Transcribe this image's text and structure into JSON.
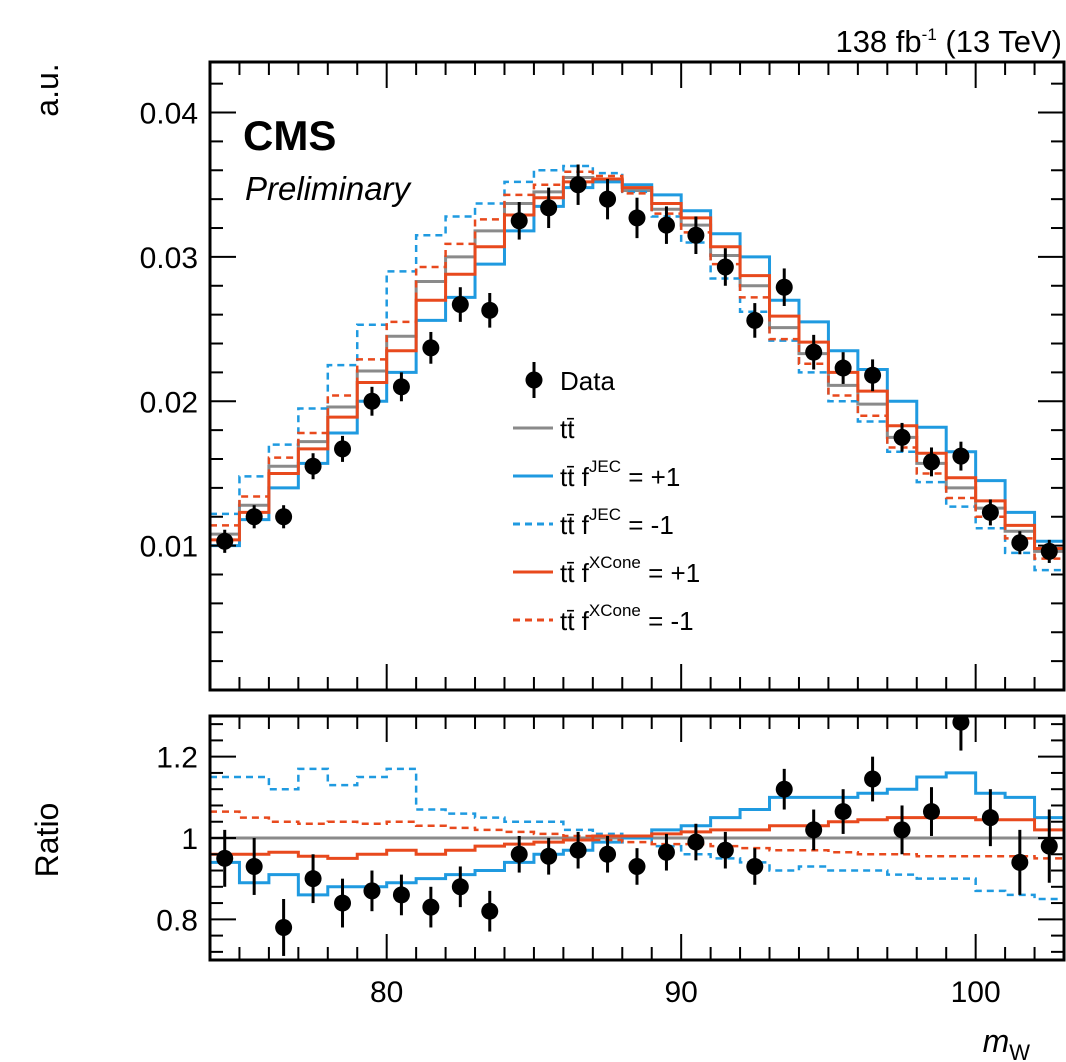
{
  "header": {
    "lumi_number": "138 fb",
    "lumi_exponent": "-1",
    "lumi_energy": " (13 TeV)",
    "experiment": "CMS",
    "status": "Preliminary"
  },
  "legend": {
    "data_label": "Data",
    "tt": "tt̄",
    "f": " f",
    "sup_jec": "JEC",
    "sup_xcone": "XCone",
    "plus": " = +1",
    "minus": " = -1"
  },
  "chart_data": [
    {
      "type": "line",
      "panel": "main",
      "ylabel": "a.u.",
      "xlabel": "m",
      "xlabel_subscript": "W",
      "xlim": [
        74,
        103
      ],
      "ylim": [
        0,
        0.0435
      ],
      "yticks": [
        "0.01",
        "0.02",
        "0.03",
        "0.04"
      ],
      "xticks": [
        "80",
        "90",
        "100"
      ],
      "x_bin_edges": [
        74,
        75,
        76,
        77,
        78,
        79,
        80,
        81,
        82,
        83,
        84,
        85,
        86,
        87,
        88,
        89,
        90,
        91,
        92,
        93,
        94,
        95,
        96,
        97,
        98,
        99,
        100,
        101,
        102,
        103
      ],
      "series": [
        {
          "name": "Data",
          "style": "points",
          "color": "#000000",
          "values": [
            0.0103,
            0.012,
            0.012,
            0.0155,
            0.0167,
            0.02,
            0.021,
            0.0237,
            0.0267,
            0.0263,
            0.0325,
            0.0334,
            0.035,
            0.034,
            0.0327,
            0.0322,
            0.0315,
            0.0293,
            0.0256,
            0.0279,
            0.0234,
            0.0223,
            0.0218,
            0.0175,
            0.0158,
            0.0162,
            0.0123,
            0.0102,
            0.0096
          ],
          "errors": [
            0.0008,
            0.0008,
            0.0008,
            0.0009,
            0.0009,
            0.001,
            0.001,
            0.0011,
            0.0012,
            0.0012,
            0.0013,
            0.0014,
            0.0014,
            0.0014,
            0.0014,
            0.0013,
            0.0013,
            0.0013,
            0.0012,
            0.0013,
            0.0012,
            0.0011,
            0.0011,
            0.001,
            0.001,
            0.001,
            0.0009,
            0.0008,
            0.0008
          ]
        },
        {
          "name": "tt̄",
          "style": "solid",
          "color": "#8a8a8a",
          "values": [
            0.0108,
            0.0128,
            0.0155,
            0.0172,
            0.0196,
            0.0221,
            0.0245,
            0.0283,
            0.03,
            0.0318,
            0.0337,
            0.0345,
            0.0355,
            0.0353,
            0.0346,
            0.0333,
            0.0322,
            0.0301,
            0.028,
            0.0251,
            0.0233,
            0.0211,
            0.0198,
            0.0175,
            0.0157,
            0.014,
            0.0126,
            0.011,
            0.0096
          ]
        },
        {
          "name": "tt̄ f^JEC = +1",
          "style": "solid",
          "color": "#1f9ae0",
          "values": [
            0.01,
            0.0118,
            0.014,
            0.0157,
            0.0178,
            0.02,
            0.022,
            0.0256,
            0.0272,
            0.0295,
            0.0318,
            0.0335,
            0.0348,
            0.0352,
            0.035,
            0.0343,
            0.0332,
            0.0316,
            0.03,
            0.027,
            0.0255,
            0.0235,
            0.0222,
            0.02,
            0.0182,
            0.0165,
            0.0145,
            0.0123,
            0.0103
          ]
        },
        {
          "name": "tt̄ f^JEC = -1",
          "style": "dashed",
          "color": "#1f9ae0",
          "values": [
            0.0122,
            0.0148,
            0.017,
            0.0195,
            0.0225,
            0.0253,
            0.029,
            0.0315,
            0.0328,
            0.0337,
            0.0352,
            0.036,
            0.0363,
            0.0358,
            0.0345,
            0.0328,
            0.031,
            0.0285,
            0.0262,
            0.0242,
            0.022,
            0.02,
            0.0186,
            0.0165,
            0.0144,
            0.0127,
            0.0112,
            0.0095,
            0.0083
          ]
        },
        {
          "name": "tt̄ f^XCone = +1",
          "style": "solid",
          "color": "#e8491d",
          "values": [
            0.0104,
            0.0123,
            0.015,
            0.0167,
            0.0189,
            0.0213,
            0.0235,
            0.027,
            0.0288,
            0.0307,
            0.0329,
            0.0341,
            0.0352,
            0.0354,
            0.0348,
            0.0337,
            0.0327,
            0.0307,
            0.0287,
            0.0259,
            0.0241,
            0.022,
            0.0207,
            0.0183,
            0.0164,
            0.0147,
            0.0131,
            0.0114,
            0.0098
          ]
        },
        {
          "name": "tt̄ f^XCone = -1",
          "style": "dashed",
          "color": "#e8491d",
          "values": [
            0.0114,
            0.0134,
            0.0161,
            0.0178,
            0.0204,
            0.0229,
            0.0255,
            0.0293,
            0.0309,
            0.0326,
            0.0343,
            0.035,
            0.0359,
            0.0356,
            0.0344,
            0.033,
            0.0317,
            0.0295,
            0.0272,
            0.0243,
            0.0226,
            0.0204,
            0.019,
            0.0168,
            0.015,
            0.0133,
            0.012,
            0.0105,
            0.0091
          ]
        }
      ]
    },
    {
      "type": "line",
      "panel": "ratio",
      "ylabel": "Ratio",
      "xlim": [
        74,
        103
      ],
      "ylim": [
        0.7,
        1.3
      ],
      "yticks": [
        "0.8",
        "1",
        "1.2"
      ],
      "x_bin_edges": [
        74,
        75,
        76,
        77,
        78,
        79,
        80,
        81,
        82,
        83,
        84,
        85,
        86,
        87,
        88,
        89,
        90,
        91,
        92,
        93,
        94,
        95,
        96,
        97,
        98,
        99,
        100,
        101,
        102,
        103
      ],
      "series": [
        {
          "name": "Data",
          "style": "points",
          "color": "#000000",
          "values": [
            0.95,
            0.93,
            0.78,
            0.9,
            0.84,
            0.87,
            0.86,
            0.83,
            0.88,
            0.82,
            0.96,
            0.955,
            0.97,
            0.96,
            0.93,
            0.965,
            0.99,
            0.97,
            0.93,
            1.12,
            1.02,
            1.065,
            1.145,
            1.02,
            1.065,
            1.285,
            1.05,
            0.94,
            0.98
          ],
          "errors": [
            0.07,
            0.07,
            0.07,
            0.06,
            0.06,
            0.05,
            0.05,
            0.05,
            0.05,
            0.05,
            0.045,
            0.045,
            0.045,
            0.045,
            0.045,
            0.045,
            0.045,
            0.045,
            0.045,
            0.05,
            0.05,
            0.055,
            0.055,
            0.06,
            0.06,
            0.07,
            0.07,
            0.08,
            0.09
          ]
        },
        {
          "name": "tt̄",
          "style": "solid",
          "color": "#8a8a8a",
          "values": [
            1,
            1,
            1,
            1,
            1,
            1,
            1,
            1,
            1,
            1,
            1,
            1,
            1,
            1,
            1,
            1,
            1,
            1,
            1,
            1,
            1,
            1,
            1,
            1,
            1,
            1,
            1,
            1,
            1
          ]
        },
        {
          "name": "tt̄ f^JEC = +1",
          "style": "solid",
          "color": "#1f9ae0",
          "values": [
            0.94,
            0.89,
            0.91,
            0.86,
            0.88,
            0.88,
            0.89,
            0.9,
            0.91,
            0.92,
            0.94,
            0.96,
            0.97,
            0.99,
            1.0,
            1.02,
            1.03,
            1.05,
            1.07,
            1.1,
            1.1,
            1.1,
            1.11,
            1.12,
            1.15,
            1.16,
            1.11,
            1.1,
            1.05
          ]
        },
        {
          "name": "tt̄ f^JEC = -1",
          "style": "dashed",
          "color": "#1f9ae0",
          "values": [
            1.15,
            1.15,
            1.12,
            1.17,
            1.13,
            1.15,
            1.17,
            1.07,
            1.06,
            1.05,
            1.04,
            1.04,
            1.02,
            1.01,
            1.0,
            0.98,
            0.96,
            0.95,
            0.94,
            0.92,
            0.93,
            0.92,
            0.92,
            0.91,
            0.9,
            0.9,
            0.87,
            0.86,
            0.85
          ]
        },
        {
          "name": "tt̄ f^XCone = +1",
          "style": "solid",
          "color": "#e8491d",
          "values": [
            0.96,
            0.96,
            0.965,
            0.955,
            0.95,
            0.96,
            0.97,
            0.96,
            0.97,
            0.98,
            0.985,
            0.99,
            0.995,
            1.005,
            1.005,
            1.01,
            1.015,
            1.02,
            1.02,
            1.03,
            1.03,
            1.04,
            1.045,
            1.05,
            1.05,
            1.05,
            1.045,
            1.045,
            1.02
          ]
        },
        {
          "name": "tt̄ f^XCone = -1",
          "style": "dashed",
          "color": "#e8491d",
          "values": [
            1.065,
            1.05,
            1.04,
            1.035,
            1.04,
            1.035,
            1.04,
            1.03,
            1.025,
            1.02,
            1.015,
            1.01,
            1.005,
            0.995,
            0.99,
            0.985,
            0.985,
            0.98,
            0.975,
            0.97,
            0.97,
            0.965,
            0.96,
            0.96,
            0.955,
            0.955,
            0.955,
            0.955,
            0.95
          ]
        }
      ]
    }
  ]
}
